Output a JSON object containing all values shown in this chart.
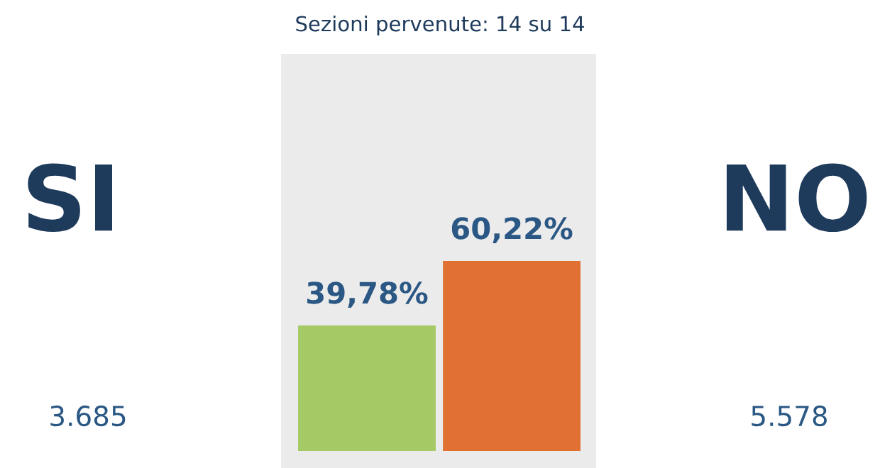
{
  "chart_data": {
    "type": "bar",
    "title": "Sezioni pervenute: 14 su 14",
    "categories": [
      "SI",
      "NO"
    ],
    "values": [
      39.78,
      60.22
    ],
    "colors": [
      "#a5c964",
      "#e07132"
    ],
    "value_labels": [
      "39,78%",
      "60,22%"
    ],
    "annotations": [
      "3.685",
      "5.578"
    ]
  }
}
